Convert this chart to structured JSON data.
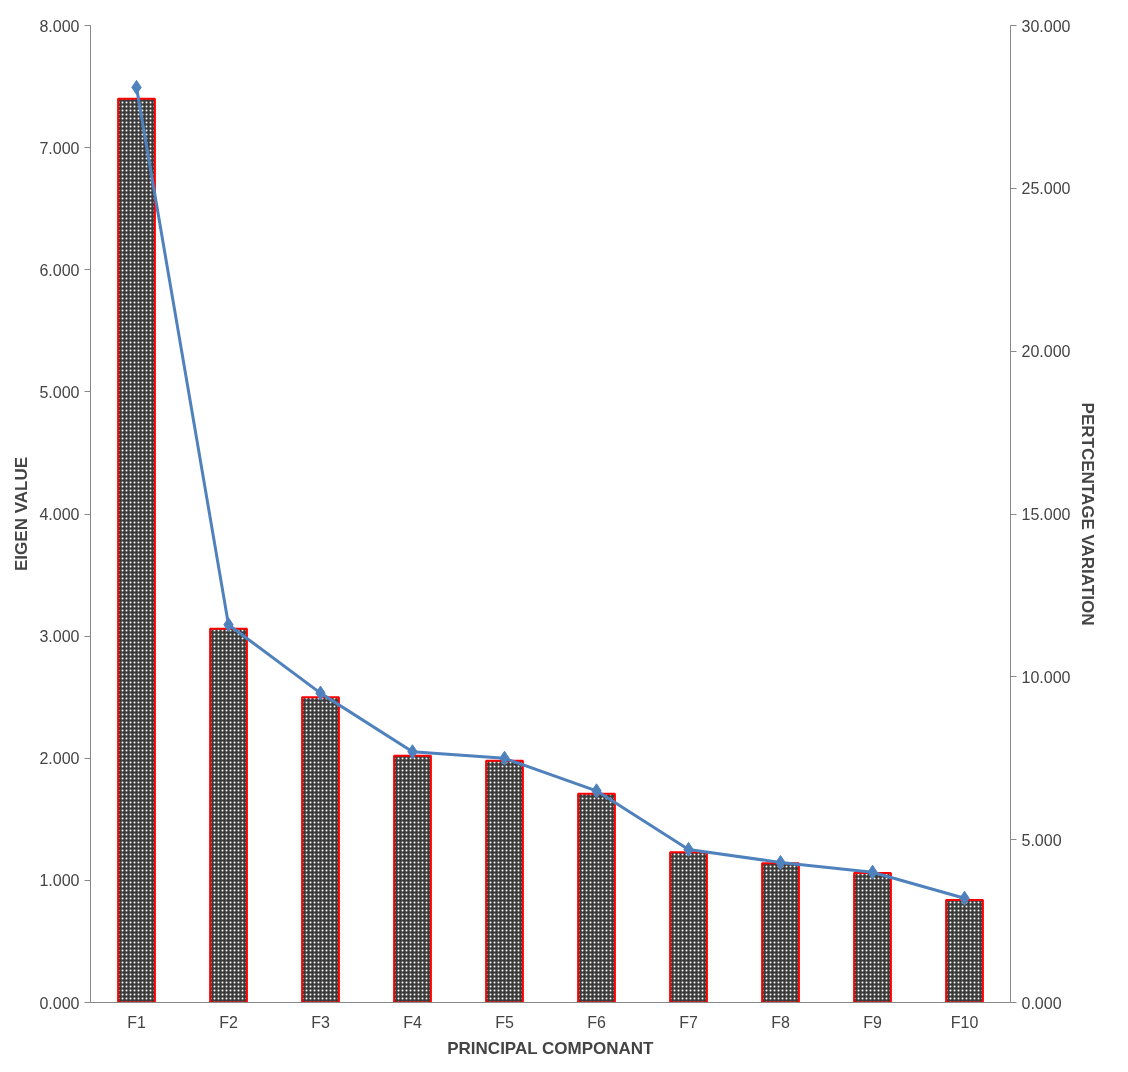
{
  "chart_data": {
    "type": "bar",
    "xlabel": "PRINCIPAL COMPONANT",
    "ylabel": "EIGEN VALUE",
    "y2label": "PERTCENTAGE VARIATION",
    "categories": [
      "F1",
      "F2",
      "F3",
      "F4",
      "F5",
      "F6",
      "F7",
      "F8",
      "F9",
      "F10"
    ],
    "series": [
      {
        "color": "#3c3c3c",
        "values": [
          7.4,
          3.06,
          2.5,
          2.02,
          1.98,
          1.71,
          1.23,
          1.14,
          1.06,
          0.84
        ]
      },
      {
        "type": "line",
        "axis": "y2",
        "color": "#4f81bd",
        "marker": "diamond",
        "values": [
          28.1,
          11.6,
          9.5,
          7.7,
          7.5,
          6.5,
          4.7,
          4.3,
          4.0,
          3.2
        ]
      }
    ],
    "ylim": [
      0,
      8
    ],
    "yticks": [
      {
        "value": 0,
        "label": "0.000"
      },
      {
        "value": 1,
        "label": "1.000"
      },
      {
        "value": 2,
        "label": "2.000"
      },
      {
        "value": 3,
        "label": "3.000"
      },
      {
        "value": 4,
        "label": "4.000"
      },
      {
        "value": 5,
        "label": "5.000"
      },
      {
        "value": 6,
        "label": "6.000"
      },
      {
        "value": 7,
        "label": "7.000"
      },
      {
        "value": 8,
        "label": "8.000"
      }
    ],
    "y2lim": [
      0,
      30
    ],
    "y2ticks": [
      {
        "value": 0,
        "label": "0.000"
      },
      {
        "value": 5,
        "label": "5.000"
      },
      {
        "value": 10,
        "label": "10.000"
      },
      {
        "value": 15,
        "label": "15.000"
      },
      {
        "value": 20,
        "label": "20.000"
      },
      {
        "value": 25,
        "label": "25.000"
      },
      {
        "value": 30,
        "label": "30.000"
      }
    ],
    "grid": false
  }
}
